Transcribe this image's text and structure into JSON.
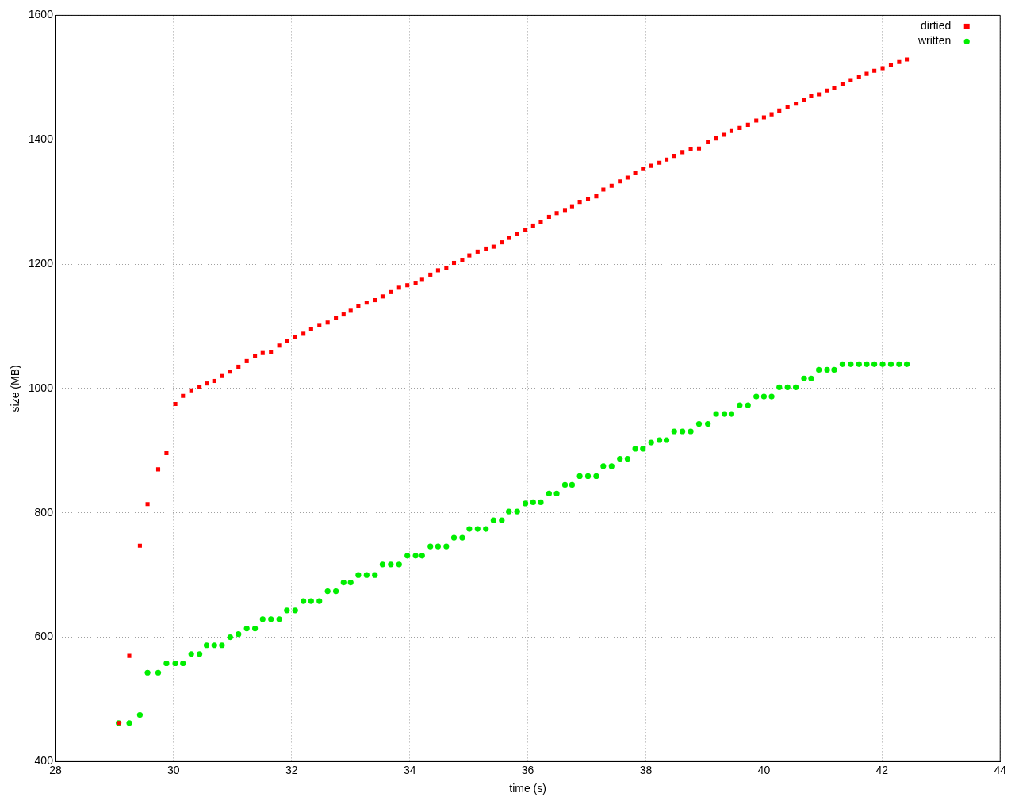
{
  "chart_data": {
    "type": "scatter",
    "xlabel": "time (s)",
    "ylabel": "size (MB)",
    "x": [
      29.07,
      29.25,
      29.43,
      29.56,
      29.74,
      29.88,
      30.03,
      30.16,
      30.3,
      30.44,
      30.56,
      30.69,
      30.82,
      30.96,
      31.1,
      31.24,
      31.38,
      31.51,
      31.65,
      31.79,
      31.92,
      32.06,
      32.2,
      32.33,
      32.47,
      32.61,
      32.75,
      32.88,
      33.0,
      33.13,
      33.27,
      33.41,
      33.54,
      33.68,
      33.82,
      33.96,
      34.1,
      34.21,
      34.35,
      34.48,
      34.62,
      34.75,
      34.89,
      35.01,
      35.15,
      35.29,
      35.42,
      35.56,
      35.68,
      35.82,
      35.96,
      36.09,
      36.22,
      36.36,
      36.49,
      36.63,
      36.75,
      36.88,
      37.02,
      37.16,
      37.28,
      37.42,
      37.56,
      37.69,
      37.82,
      37.95,
      38.09,
      38.23,
      38.35,
      38.48,
      38.62,
      38.76,
      38.9,
      39.05,
      39.19,
      39.33,
      39.45,
      39.59,
      39.73,
      39.87,
      40.0,
      40.13,
      40.26,
      40.4,
      40.54,
      40.68,
      40.8,
      40.93,
      41.07,
      41.19,
      41.33,
      41.47,
      41.61,
      41.74,
      41.87,
      42.01,
      42.15,
      42.29,
      42.42
    ],
    "series": [
      {
        "name": "dirtied",
        "color": "#ff0000",
        "marker": "square",
        "values": [
          462,
          570,
          747,
          814,
          870,
          896,
          975,
          988,
          997,
          1003,
          1008,
          1012,
          1020,
          1027,
          1035,
          1044,
          1052,
          1057,
          1059,
          1069,
          1076,
          1083,
          1088,
          1096,
          1102,
          1106,
          1113,
          1119,
          1125,
          1132,
          1138,
          1142,
          1148,
          1155,
          1162,
          1166,
          1170,
          1176,
          1183,
          1190,
          1194,
          1202,
          1207,
          1214,
          1220,
          1225,
          1228,
          1235,
          1242,
          1249,
          1255,
          1262,
          1268,
          1276,
          1282,
          1287,
          1293,
          1300,
          1304,
          1309,
          1320,
          1326,
          1333,
          1339,
          1346,
          1353,
          1358,
          1363,
          1368,
          1374,
          1380,
          1385,
          1386,
          1396,
          1402,
          1408,
          1414,
          1419,
          1424,
          1431,
          1436,
          1441,
          1447,
          1452,
          1458,
          1464,
          1470,
          1473,
          1479,
          1483,
          1489,
          1496,
          1501,
          1506,
          1511,
          1515,
          1520,
          1525,
          1529
        ]
      },
      {
        "name": "written",
        "color": "#00ee00",
        "marker": "circle",
        "values": [
          462,
          462,
          475,
          543,
          543,
          558,
          558,
          558,
          573,
          573,
          587,
          587,
          587,
          600,
          605,
          614,
          614,
          629,
          629,
          629,
          643,
          643,
          658,
          658,
          658,
          674,
          674,
          688,
          688,
          700,
          700,
          700,
          717,
          717,
          717,
          731,
          731,
          731,
          746,
          746,
          746,
          760,
          760,
          774,
          774,
          774,
          788,
          788,
          802,
          802,
          815,
          817,
          817,
          831,
          831,
          845,
          845,
          859,
          859,
          859,
          875,
          875,
          887,
          887,
          903,
          903,
          913,
          917,
          917,
          931,
          931,
          931,
          943,
          943,
          959,
          959,
          959,
          973,
          973,
          987,
          987,
          987,
          1002,
          1002,
          1002,
          1016,
          1016,
          1030,
          1030,
          1030,
          1039,
          1039,
          1039,
          1039,
          1039,
          1039,
          1039,
          1039,
          1039
        ]
      }
    ],
    "xlim": [
      28,
      44
    ],
    "xticks": [
      28,
      30,
      32,
      34,
      36,
      38,
      40,
      42,
      44
    ],
    "ylim": [
      400,
      1600
    ],
    "yticks": [
      400,
      600,
      800,
      1000,
      1200,
      1400,
      1600
    ],
    "grid": true,
    "legend": "top right"
  }
}
